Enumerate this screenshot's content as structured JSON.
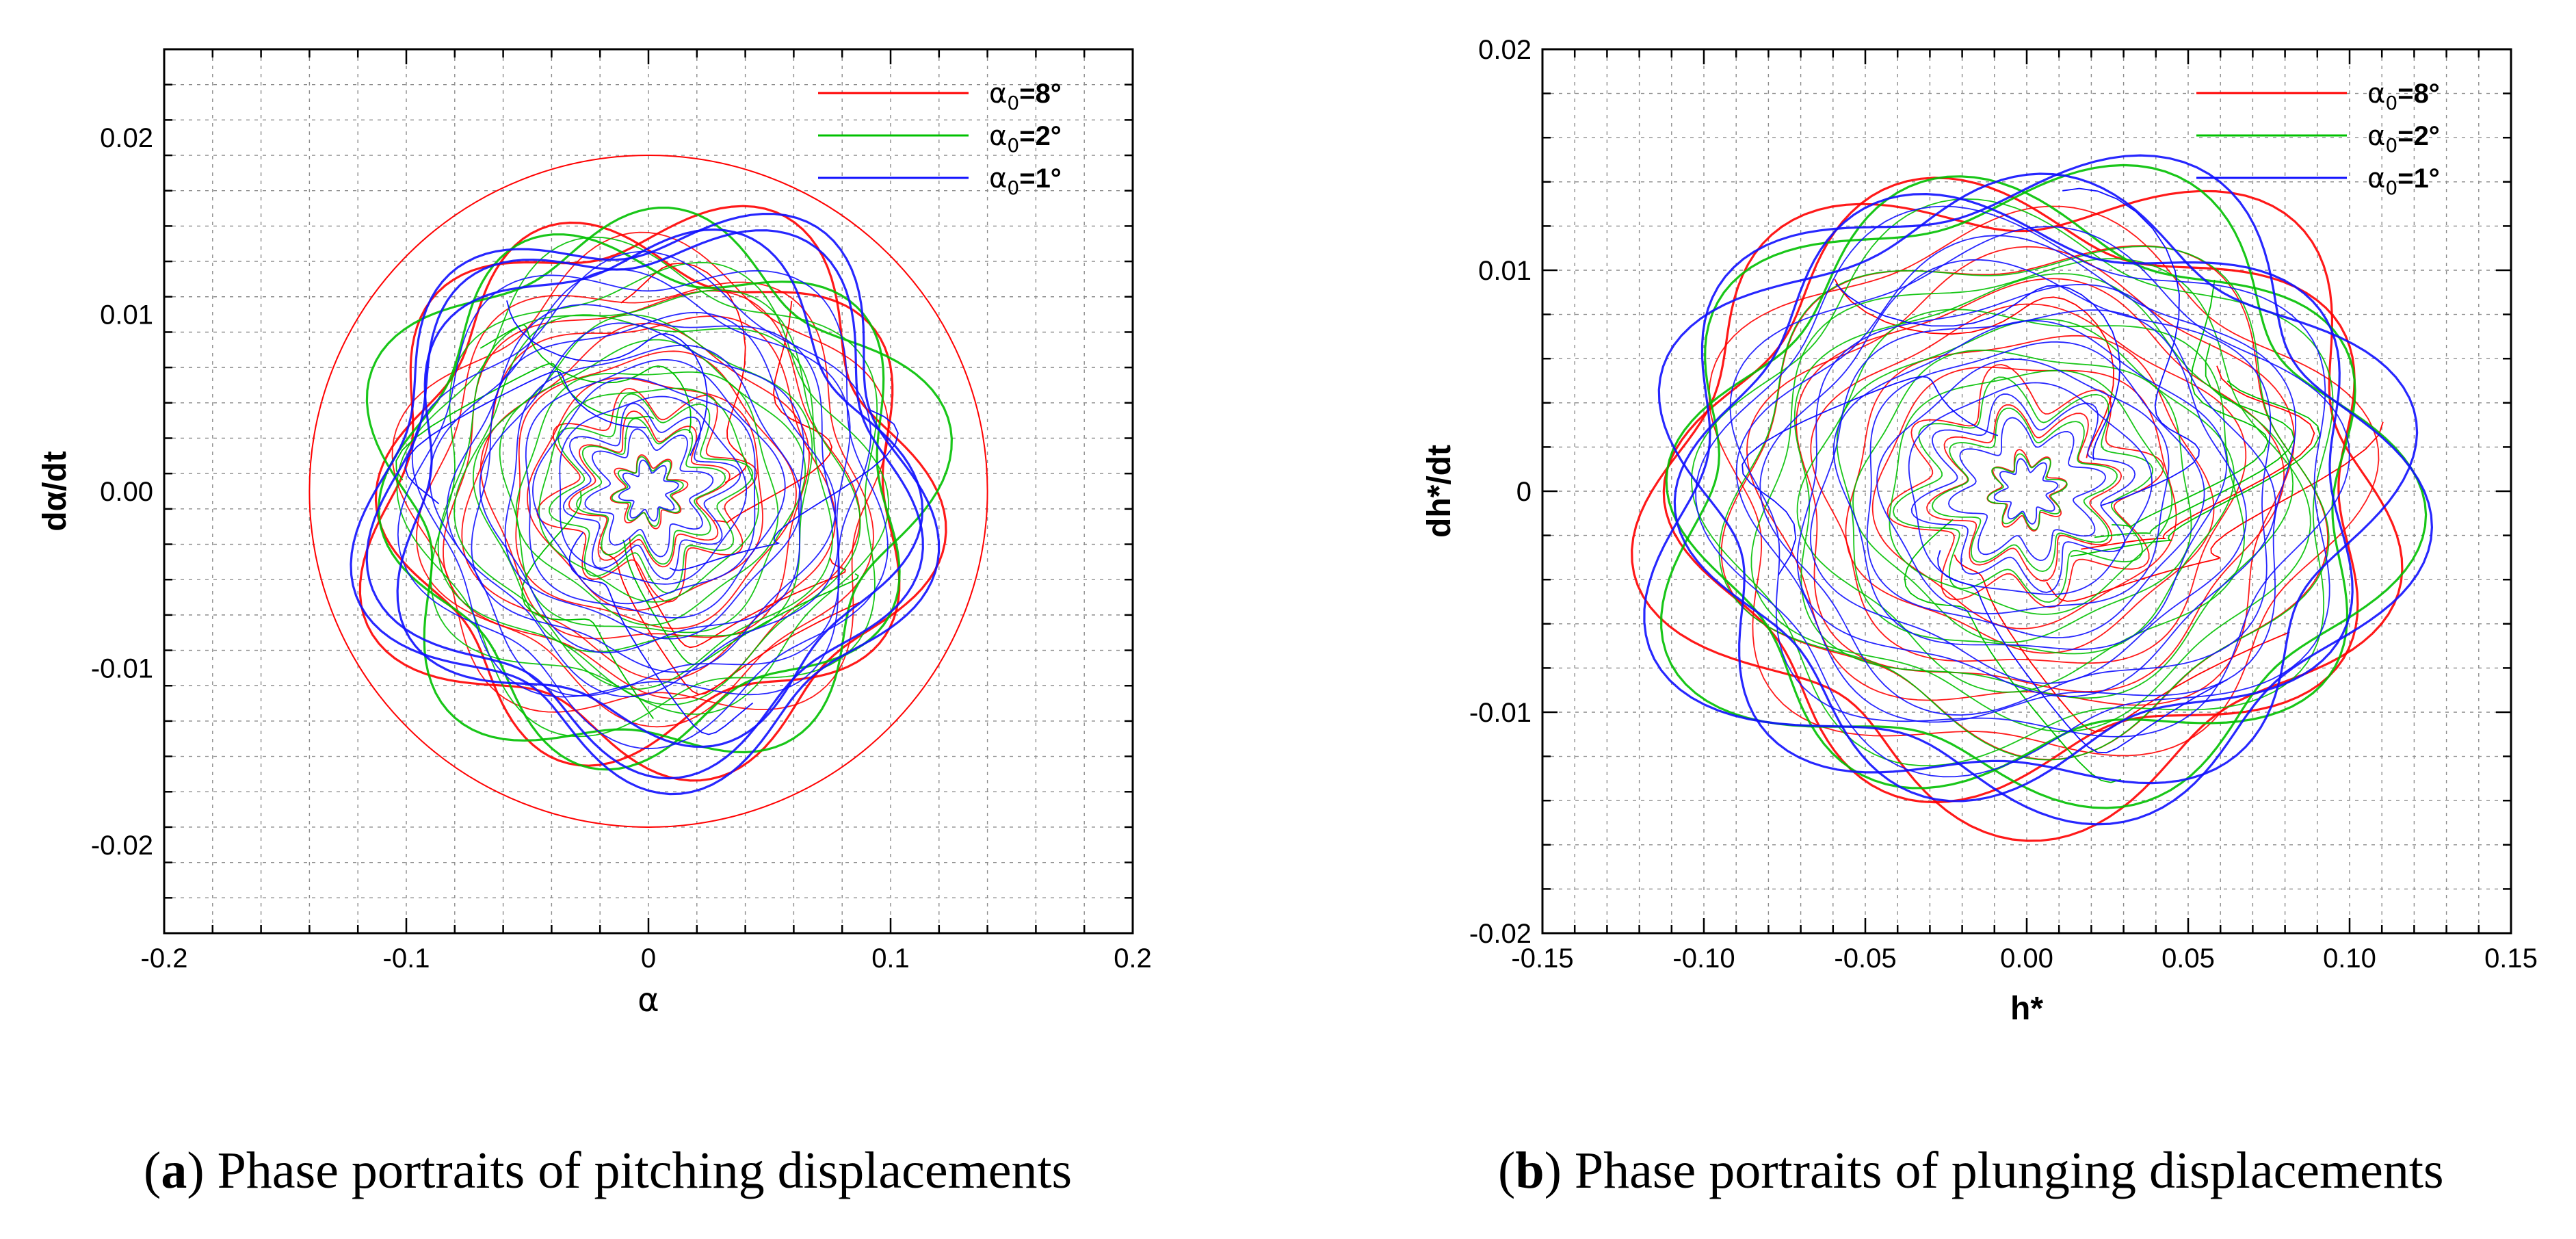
{
  "colors": {
    "red": "#ff0000",
    "green": "#00c000",
    "blue": "#1010ff",
    "grid": "#8c8c8c",
    "axis": "#000000"
  },
  "legend": [
    {
      "key": "red",
      "label_symbol": "α",
      "label_sub": "0",
      "label_rest": "=8°"
    },
    {
      "key": "green",
      "label_symbol": "α",
      "label_sub": "0",
      "label_rest": "=2°"
    },
    {
      "key": "blue",
      "label_symbol": "α",
      "label_sub": "0",
      "label_rest": "=1°"
    }
  ],
  "captions": {
    "a": {
      "letter": "a",
      "text": " Phase portraits of pitching displacements"
    },
    "b": {
      "letter": "b",
      "text": " Phase portraits of plunging displacements"
    }
  },
  "chart_data": [
    {
      "id": "a",
      "type": "line",
      "title": "",
      "xlabel": "α",
      "ylabel": "dα/dt",
      "xlim": [
        -0.2,
        0.2
      ],
      "ylim": [
        -0.025,
        0.025
      ],
      "xticks": [
        -0.2,
        -0.1,
        0,
        0.1,
        0.2
      ],
      "xtick_labels": [
        "-0.2",
        "-0.1",
        "0",
        "0.1",
        "0.2"
      ],
      "yticks": [
        -0.02,
        -0.01,
        0.0,
        0.01,
        0.02
      ],
      "ytick_labels": [
        "-0.02",
        "-0.01",
        "0.00",
        "0.01",
        "0.02"
      ],
      "grid": true,
      "legend_position": "top-right",
      "series": [
        {
          "name": "α0=8°",
          "color_key": "red",
          "outer_circle": {
            "x_radius": 0.14,
            "y_radius": 0.019
          },
          "amplitude": [
            0.112,
            0.015
          ],
          "inner_amplitude": [
            0.013,
            0.0017
          ],
          "rings": 12,
          "seed": 3
        },
        {
          "name": "α0=2°",
          "color_key": "green",
          "amplitude": [
            0.11,
            0.0148
          ],
          "inner_amplitude": [
            0.012,
            0.0016
          ],
          "rings": 13,
          "seed": 7
        },
        {
          "name": "α0=1°",
          "color_key": "blue",
          "amplitude": [
            0.113,
            0.0152
          ],
          "inner_amplitude": [
            0.01,
            0.0014
          ],
          "rings": 16,
          "seed": 11
        }
      ]
    },
    {
      "id": "b",
      "type": "line",
      "title": "",
      "xlabel": "h*",
      "ylabel": "dh*/dt",
      "xlim": [
        -0.15,
        0.15
      ],
      "ylim": [
        -0.02,
        0.02
      ],
      "xticks": [
        -0.15,
        -0.1,
        -0.05,
        0,
        0.05,
        0.1,
        0.15
      ],
      "xtick_labels": [
        "-0.15",
        "-0.10",
        "-0.05",
        "0.00",
        "0.05",
        "0.10",
        "0.15"
      ],
      "yticks": [
        -0.02,
        -0.01,
        0,
        0.01,
        0.02
      ],
      "ytick_labels": [
        "-0.02",
        "-0.01",
        "0",
        "0.01",
        "0.02"
      ],
      "grid": true,
      "legend_position": "top-right",
      "series": [
        {
          "name": "α0=8°",
          "color_key": "red",
          "amplitude": [
            0.112,
            0.0138
          ],
          "inner_amplitude": [
            0.01,
            0.0015
          ],
          "rings": 12,
          "seed": 5
        },
        {
          "name": "α0=2°",
          "color_key": "green",
          "amplitude": [
            0.11,
            0.0135
          ],
          "inner_amplitude": [
            0.01,
            0.0014
          ],
          "rings": 13,
          "seed": 9
        },
        {
          "name": "α0=1°",
          "color_key": "blue",
          "amplitude": [
            0.113,
            0.014
          ],
          "inner_amplitude": [
            0.008,
            0.0012
          ],
          "rings": 16,
          "seed": 13
        }
      ]
    }
  ]
}
